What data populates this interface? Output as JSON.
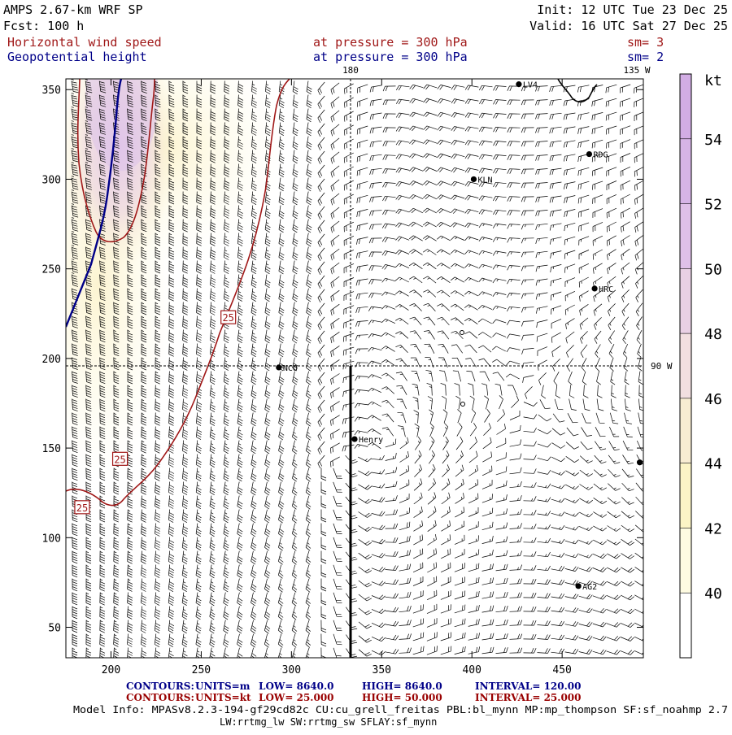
{
  "header": {
    "model": "AMPS 2.67-km WRF SP",
    "fcst": "Fcst:  100 h",
    "init": "Init: 12 UTC Tue 23 Dec 25",
    "valid": "Valid: 16 UTC Sat 27 Dec 25",
    "field1": "Horizontal wind speed",
    "field2": "Geopotential height",
    "pressure1": "at pressure =  300 hPa",
    "pressure2": "at pressure =  300 hPa",
    "sm1": "sm= 3",
    "sm2": "sm= 2",
    "lon_top_180": "180",
    "lon_top_135w": "135 W",
    "lon_right_90w": "90 W"
  },
  "colors": {
    "maroon": "#a01818",
    "navy": "#000088",
    "darkred": "#990000",
    "bar_outline": "#000000"
  },
  "chart_data": {
    "type": "heatmap",
    "title": "Horizontal wind speed / Geopotential height at 300 hPa",
    "xlim": [
      175,
      495
    ],
    "ylim": [
      33,
      356
    ],
    "x_ticks": [
      200,
      250,
      300,
      350,
      400,
      450
    ],
    "y_ticks": [
      50,
      100,
      150,
      200,
      250,
      300,
      350
    ],
    "colorbar": {
      "unit": "kt",
      "levels": [
        40,
        42,
        44,
        46,
        48,
        50,
        52,
        54
      ],
      "colors": [
        "#ffffff",
        "#fefbe1",
        "#fcf4c6",
        "#f8ecd2",
        "#f2dfe0",
        "#e9d0e4",
        "#dfc0e8",
        "#d6b4e6",
        "#d2ade4"
      ]
    },
    "contour_labels": [
      {
        "x": 265,
        "y": 223,
        "text": "25"
      },
      {
        "x": 205,
        "y": 144,
        "text": "25"
      },
      {
        "x": 184,
        "y": 117,
        "text": "25"
      }
    ],
    "stations": [
      {
        "name": "LV4",
        "x": 426,
        "y": 353
      },
      {
        "name": "RDG",
        "x": 465,
        "y": 314
      },
      {
        "name": "KLN",
        "x": 401,
        "y": 300
      },
      {
        "name": "HRC",
        "x": 468,
        "y": 239
      },
      {
        "name": "NCO",
        "x": 293,
        "y": 195
      },
      {
        "name": "Henry",
        "x": 335,
        "y": 155
      },
      {
        "name": "",
        "x": 493,
        "y": 142
      },
      {
        "name": "AG2",
        "x": 459,
        "y": 73
      }
    ],
    "wind_regions": [
      {
        "region": "west",
        "direction": "south-to-north jet",
        "max_speed_kt": 54
      },
      {
        "region": "center",
        "direction": "southerly to south-westerly",
        "speed_kt": "15-25"
      },
      {
        "region": "east",
        "direction": "anticyclonic circulation",
        "speed_kt": "5-20"
      }
    ],
    "contours": [
      {
        "field": "height",
        "units": "m",
        "low": 8640.0,
        "high": 8640.0,
        "interval": 120.0
      },
      {
        "field": "wind",
        "units": "kt",
        "low": 25.0,
        "high": 50.0,
        "interval": 25.0
      }
    ]
  },
  "footer": {
    "c1_label": "CONTOURS:",
    "c1_units": "UNITS=m",
    "c1_low": "LOW=   8640.0",
    "c1_high": "HIGH=  8640.0",
    "c1_interval": "INTERVAL=    120.00",
    "c2_label": "CONTOURS:",
    "c2_units": "UNITS=kt",
    "c2_low": "LOW=   25.000",
    "c2_high": "HIGH=  50.000",
    "c2_interval": "INTERVAL=    25.000",
    "model_info": "Model Info: MPASv8.2.3-194-gf29cd82c CU:cu_grell_freitas PBL:bl_mynn MP:mp_thompson SF:sf_noahmp 2.7",
    "model_info2": "LW:rrtmg_lw SW:rrtmg_sw SFLAY:sf_mynn"
  }
}
